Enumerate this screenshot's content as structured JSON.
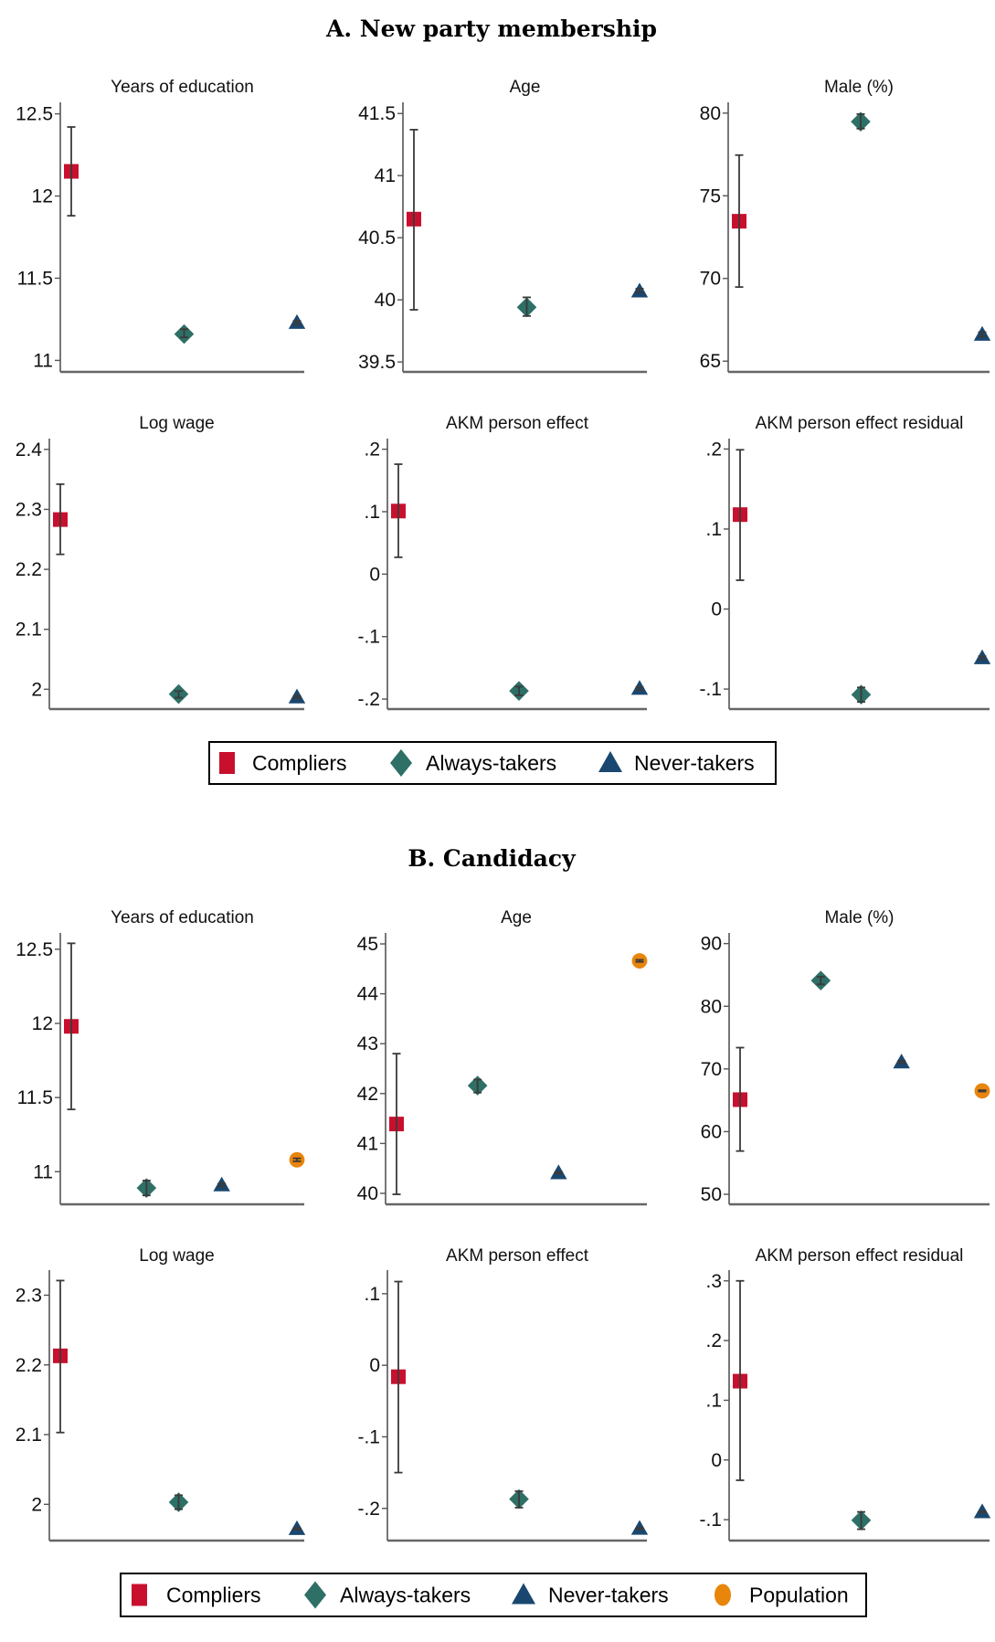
{
  "colors": {
    "Compliers": "#c8102e",
    "Always-takers": "#2e6f66",
    "Never-takers": "#1a476f",
    "Population": "#e8850c"
  },
  "chart_data": [
    {
      "type": "scatter",
      "title": "A. New party membership",
      "legend": {
        "entries": [
          "Compliers",
          "Always-takers",
          "Never-takers"
        ],
        "placement": "bottom"
      },
      "panels": [
        {
          "title": "Years of education",
          "yticks": [
            "12.5",
            "12",
            "11.5",
            "11"
          ],
          "ytick_values": [
            12.5,
            12,
            11.5,
            11
          ],
          "ylim": [
            10.93,
            12.57
          ],
          "series": [
            {
              "name": "Compliers",
              "value": 12.15,
              "ci": [
                11.88,
                12.42
              ]
            },
            {
              "name": "Always-takers",
              "value": 11.16,
              "ci": [
                11.14,
                11.19
              ]
            },
            {
              "name": "Never-takers",
              "value": 11.23,
              "ci": [
                11.22,
                11.24
              ]
            }
          ]
        },
        {
          "title": "Age",
          "yticks": [
            "41.5",
            "41",
            "40.5",
            "40",
            "39.5"
          ],
          "ytick_values": [
            41.5,
            41,
            40.5,
            40,
            39.5
          ],
          "ylim": [
            39.42,
            41.59
          ],
          "series": [
            {
              "name": "Compliers",
              "value": 40.65,
              "ci": [
                39.92,
                41.37
              ]
            },
            {
              "name": "Always-takers",
              "value": 39.94,
              "ci": [
                39.87,
                40.02
              ]
            },
            {
              "name": "Never-takers",
              "value": 40.07,
              "ci": [
                40.06,
                40.09
              ]
            }
          ]
        },
        {
          "title": "Male (%)",
          "yticks": [
            "80",
            "75",
            "70",
            "65"
          ],
          "ytick_values": [
            80,
            75,
            70,
            65
          ],
          "ylim": [
            64.35,
            80.65
          ],
          "series": [
            {
              "name": "Compliers",
              "value": 73.46,
              "ci": [
                69.48,
                77.46
              ]
            },
            {
              "name": "Always-takers",
              "value": 79.48,
              "ci": [
                79.06,
                79.94
              ]
            },
            {
              "name": "Never-takers",
              "value": 66.62,
              "ci": [
                66.5,
                66.75
              ]
            }
          ]
        },
        {
          "title": "Log wage",
          "yticks": [
            "2.4",
            "2.3",
            "2.2",
            "2.1",
            "2"
          ],
          "ytick_values": [
            2.4,
            2.3,
            2.2,
            2.1,
            2.0
          ],
          "ylim": [
            1.967,
            2.418
          ],
          "series": [
            {
              "name": "Compliers",
              "value": 2.283,
              "ci": [
                2.225,
                2.342
              ]
            },
            {
              "name": "Always-takers",
              "value": 1.992,
              "ci": [
                1.986,
                1.997
              ]
            },
            {
              "name": "Never-takers",
              "value": 1.987,
              "ci": [
                1.985,
                1.989
              ]
            }
          ]
        },
        {
          "title": "AKM person effect",
          "yticks": [
            ".2",
            ".1",
            "0",
            "-.1",
            "-.2"
          ],
          "ytick_values": [
            0.2,
            0.1,
            0,
            -0.1,
            -0.2
          ],
          "ylim": [
            -0.216,
            0.217
          ],
          "series": [
            {
              "name": "Compliers",
              "value": 0.101,
              "ci": [
                0.027,
                0.176
              ]
            },
            {
              "name": "Always-takers",
              "value": -0.187,
              "ci": [
                -0.194,
                -0.18
              ]
            },
            {
              "name": "Never-takers",
              "value": -0.183,
              "ci": [
                -0.185,
                -0.181
              ]
            }
          ]
        },
        {
          "title": "AKM person effect residual",
          "yticks": [
            ".2",
            ".1",
            "0",
            "-.1"
          ],
          "ytick_values": [
            0.2,
            0.1,
            0,
            -0.1
          ],
          "ylim": [
            -0.125,
            0.213
          ],
          "series": [
            {
              "name": "Compliers",
              "value": 0.118,
              "ci": [
                0.036,
                0.199
              ]
            },
            {
              "name": "Always-takers",
              "value": -0.107,
              "ci": [
                -0.116,
                -0.098
              ]
            },
            {
              "name": "Never-takers",
              "value": -0.061,
              "ci": [
                -0.063,
                -0.059
              ]
            }
          ]
        }
      ]
    },
    {
      "type": "scatter",
      "title": "B. Candidacy",
      "legend": {
        "entries": [
          "Compliers",
          "Always-takers",
          "Never-takers",
          "Population"
        ],
        "placement": "bottom"
      },
      "panels": [
        {
          "title": "Years of education",
          "yticks": [
            "12.5",
            "12",
            "11.5",
            "11"
          ],
          "ytick_values": [
            12.5,
            12,
            11.5,
            11
          ],
          "ylim": [
            10.78,
            12.61
          ],
          "series": [
            {
              "name": "Compliers",
              "value": 11.98,
              "ci": [
                11.42,
                12.54
              ]
            },
            {
              "name": "Always-takers",
              "value": 10.89,
              "ci": [
                10.84,
                10.94
              ]
            },
            {
              "name": "Never-takers",
              "value": 10.91,
              "ci": [
                10.9,
                10.92
              ]
            },
            {
              "name": "Population",
              "value": 11.08,
              "ci": [
                11.07,
                11.09
              ]
            }
          ]
        },
        {
          "title": "Age",
          "yticks": [
            "45",
            "44",
            "43",
            "42",
            "41",
            "40"
          ],
          "ytick_values": [
            45,
            44,
            43,
            42,
            41,
            40
          ],
          "ylim": [
            39.78,
            45.22
          ],
          "series": [
            {
              "name": "Compliers",
              "value": 41.39,
              "ci": [
                39.98,
                42.8
              ]
            },
            {
              "name": "Always-takers",
              "value": 42.16,
              "ci": [
                42.02,
                42.28
              ]
            },
            {
              "name": "Never-takers",
              "value": 40.41,
              "ci": [
                40.4,
                40.43
              ]
            },
            {
              "name": "Population",
              "value": 44.66,
              "ci": [
                44.64,
                44.68
              ]
            }
          ]
        },
        {
          "title": "Male (%)",
          "yticks": [
            "90",
            "80",
            "70",
            "60",
            "50"
          ],
          "ytick_values": [
            90,
            80,
            70,
            60,
            50
          ],
          "ylim": [
            48.4,
            91.7
          ],
          "series": [
            {
              "name": "Compliers",
              "value": 65.1,
              "ci": [
                56.9,
                73.4
              ]
            },
            {
              "name": "Always-takers",
              "value": 84.1,
              "ci": [
                83.5,
                84.7
              ]
            },
            {
              "name": "Never-takers",
              "value": 71.1,
              "ci": [
                70.9,
                71.3
              ]
            },
            {
              "name": "Population",
              "value": 66.5,
              "ci": [
                66.4,
                66.6
              ]
            }
          ]
        },
        {
          "title": "Log wage",
          "yticks": [
            "2.3",
            "2.2",
            "2.1",
            "2"
          ],
          "ytick_values": [
            2.3,
            2.2,
            2.1,
            2.0
          ],
          "ylim": [
            1.948,
            2.336
          ],
          "series": [
            {
              "name": "Compliers",
              "value": 2.213,
              "ci": [
                2.103,
                2.321
              ]
            },
            {
              "name": "Always-takers",
              "value": 2.003,
              "ci": [
                1.993,
                2.013
              ]
            },
            {
              "name": "Never-takers",
              "value": 1.965,
              "ci": [
                1.964,
                1.966
              ]
            }
          ]
        },
        {
          "title": "AKM person effect",
          "yticks": [
            ".1",
            "0",
            "-.1",
            "-.2"
          ],
          "ytick_values": [
            0.1,
            0,
            -0.1,
            -0.2
          ],
          "ylim": [
            -0.245,
            0.133
          ],
          "series": [
            {
              "name": "Compliers",
              "value": -0.016,
              "ci": [
                -0.15,
                0.117
              ]
            },
            {
              "name": "Always-takers",
              "value": -0.187,
              "ci": [
                -0.199,
                -0.176
              ]
            },
            {
              "name": "Never-takers",
              "value": -0.228,
              "ci": [
                -0.229,
                -0.227
              ]
            }
          ]
        },
        {
          "title": "AKM person effect residual",
          "yticks": [
            ".3",
            ".2",
            ".1",
            "0",
            "-.1"
          ],
          "ytick_values": [
            0.3,
            0.2,
            0.1,
            0,
            -0.1
          ],
          "ylim": [
            -0.135,
            0.318
          ],
          "series": [
            {
              "name": "Compliers",
              "value": 0.132,
              "ci": [
                -0.034,
                0.3
              ]
            },
            {
              "name": "Always-takers",
              "value": -0.101,
              "ci": [
                -0.116,
                -0.087
              ]
            },
            {
              "name": "Never-takers",
              "value": -0.087,
              "ci": [
                -0.088,
                -0.086
              ]
            }
          ]
        }
      ]
    }
  ]
}
